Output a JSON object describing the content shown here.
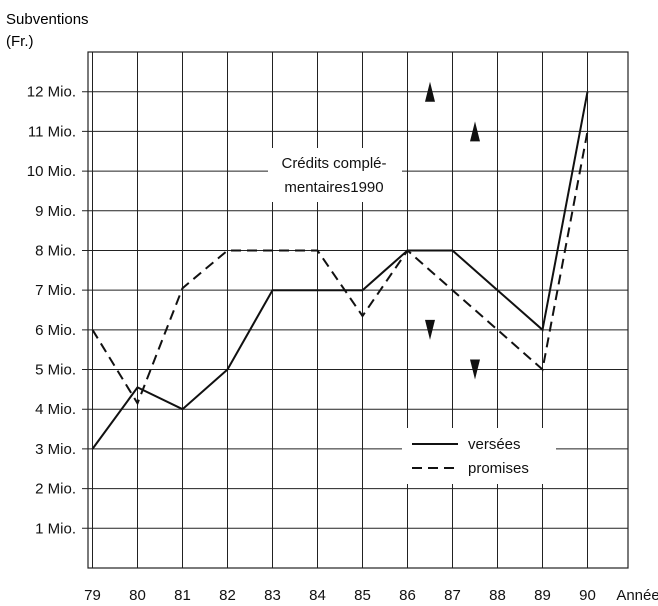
{
  "chart_data": {
    "type": "line",
    "ylabel": [
      "Subventions",
      "(Fr.)"
    ],
    "xlabel": "Année",
    "x": [
      79,
      80,
      81,
      82,
      83,
      84,
      85,
      86,
      87,
      88,
      89,
      90
    ],
    "x_tick_labels": [
      "79",
      "80",
      "81",
      "82",
      "83",
      "84",
      "85",
      "86",
      "87",
      "88",
      "89",
      "90"
    ],
    "xlim": [
      79,
      90
    ],
    "ylim": [
      0,
      12.5
    ],
    "y_ticks": [
      1,
      2,
      3,
      4,
      5,
      6,
      7,
      8,
      9,
      10,
      11,
      12
    ],
    "y_tick_labels": [
      "1 Mio.",
      "2 Mio.",
      "3 Mio.",
      "4 Mio.",
      "5 Mio.",
      "6 Mio.",
      "7 Mio.",
      "8 Mio.",
      "9 Mio.",
      "10 Mio.",
      "11 Mio.",
      "12 Mio."
    ],
    "grid": true,
    "legend_position": "bottom-right",
    "series": [
      {
        "name": "versées",
        "style": "solid",
        "points": [
          [
            79,
            3.0
          ],
          [
            80,
            4.55
          ],
          [
            81,
            4.0
          ],
          [
            82,
            5.0
          ],
          [
            83,
            7.0
          ],
          [
            84,
            7.0
          ],
          [
            85,
            7.0
          ],
          [
            86,
            8.0
          ],
          [
            87,
            8.0
          ],
          [
            88,
            7.0
          ],
          [
            89,
            6.0
          ],
          [
            90,
            12.0
          ]
        ]
      },
      {
        "name": "promises",
        "style": "dashed",
        "points": [
          [
            79,
            6.0
          ],
          [
            80,
            4.15
          ],
          [
            81,
            7.05
          ],
          [
            82,
            8.0
          ],
          [
            83,
            8.0
          ],
          [
            84,
            8.0
          ],
          [
            85,
            6.35
          ],
          [
            86,
            8.0
          ],
          [
            87,
            7.0
          ],
          [
            88,
            6.0
          ],
          [
            89,
            5.0
          ],
          [
            90,
            11.0
          ]
        ]
      }
    ],
    "annotation": {
      "lines": [
        "Crédits complé-",
        "mentaires1990"
      ],
      "x": 85.5,
      "y": 10.0
    },
    "arrows": [
      {
        "x": 86.5,
        "y": 12.0,
        "direction": "up"
      },
      {
        "x": 87.5,
        "y": 11.0,
        "direction": "up"
      },
      {
        "x": 86.5,
        "y": 6.0,
        "direction": "down"
      },
      {
        "x": 87.5,
        "y": 5.0,
        "direction": "down"
      }
    ],
    "colors": {
      "line": "#111111",
      "grid": "#222222",
      "background": "#ffffff"
    }
  }
}
